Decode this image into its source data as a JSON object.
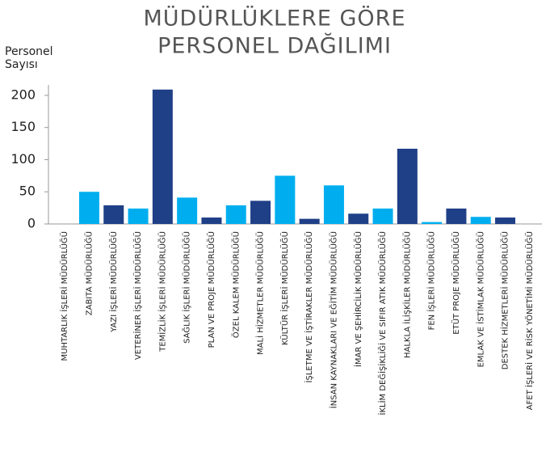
{
  "chart_data": {
    "type": "bar",
    "title": [
      "MÜDÜRLÜKLERE GÖRE",
      "PERSONEL DAĞILIMI"
    ],
    "ylabel": [
      "Personel",
      "Sayısı"
    ],
    "categories": [
      "MUHTARLIK İŞLERİ MÜDÜRLÜĞÜ",
      "ZABITA MÜDÜRLÜĞÜ",
      "YAZI İŞLERİ MÜDÜRLÜĞÜ",
      "VETERİNER İŞLERİ MÜDÜRLÜĞÜ",
      "TEMİZLİK İŞLERİ MÜDÜRLÜĞÜ",
      "SAĞLIK İŞLERİ MÜDÜRLÜĞÜ",
      "PLAN VE PROJE MÜDÜRLÜĞÜ",
      "ÖZEL KALEM MÜDÜRLÜĞÜ",
      "MALİ HİZMETLER MÜDÜRLÜĞÜ",
      "KÜLTÜR İŞLERİ MÜDÜRLÜĞÜ",
      "İŞLETME VE İŞTİRAKLER MÜDÜRLÜĞÜ",
      "İNSAN KAYNAKLARI VE EĞİTİM MÜDÜRLÜĞÜ",
      "İMAR VE ŞEHİRCİLİK MÜDÜRLÜĞÜ",
      "İKLİM DEĞİŞİKLİĞİ VE SIFIR ATIK MÜDÜRLÜĞÜ",
      "HALKLA İLİŞKİLER MÜDÜRLÜĞÜ",
      "FEN İŞLERİ MÜDÜRLÜĞÜ",
      "ETÜT PROJE MÜDÜRLÜĞÜ",
      "EMLAK VE İSTİMLAK MÜDÜRLÜĞÜ",
      "DESTEK HİZMETLERİ MÜDÜRLÜĞÜ",
      "AFET İŞLERİ VE RİSK YÖNETİMİ MÜDÜRLÜĞÜ"
    ],
    "values": [
      0,
      50,
      29,
      24,
      209,
      41,
      10,
      29,
      36,
      75,
      8,
      60,
      16,
      24,
      117,
      3,
      24,
      11,
      10,
      0
    ],
    "colors": [
      "#1f3f87",
      "#00aeef",
      "#1f3f87",
      "#00aeef",
      "#1f3f87",
      "#00aeef",
      "#1f3f87",
      "#00aeef",
      "#1f3f87",
      "#00aeef",
      "#1f3f87",
      "#00aeef",
      "#1f3f87",
      "#00aeef",
      "#1f3f87",
      "#00aeef",
      "#1f3f87",
      "#00aeef",
      "#1f3f87",
      "#00aeef"
    ],
    "ylim": [
      0,
      215
    ],
    "yticks": [
      0,
      50,
      100,
      150,
      200
    ]
  }
}
